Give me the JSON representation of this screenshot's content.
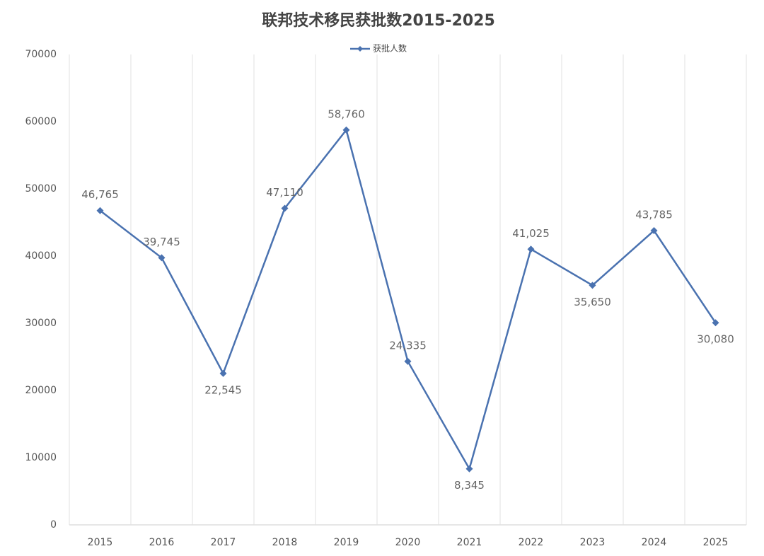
{
  "chart_data": {
    "type": "line",
    "title": "联邦技术移民获批数2015-2025",
    "categories": [
      "2015",
      "2016",
      "2017",
      "2018",
      "2019",
      "2020",
      "2021",
      "2022",
      "2023",
      "2024",
      "2025"
    ],
    "series": [
      {
        "name": "获批人数",
        "color": "#4a72b0",
        "values": [
          46765,
          39745,
          22545,
          47110,
          58760,
          24335,
          8345,
          41025,
          35650,
          43785,
          30080
        ],
        "value_labels": [
          "46,765",
          "39,745",
          "22,545",
          "47,110",
          "58,760",
          "24,335",
          "8,345",
          "41,025",
          "35,650",
          "43,785",
          "30,080"
        ]
      }
    ],
    "ylim": [
      0,
      70000
    ],
    "yticks": [
      0,
      10000,
      20000,
      30000,
      40000,
      50000,
      60000,
      70000
    ],
    "grid": true,
    "legend": "top"
  }
}
